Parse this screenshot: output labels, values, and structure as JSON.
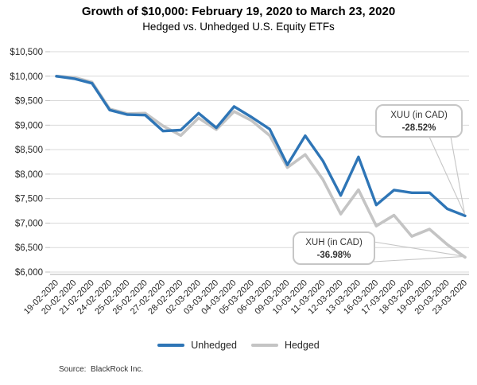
{
  "chart": {
    "title": "Growth of $10,000: February 19, 2020 to March 23, 2020",
    "subtitle": "Hedged vs. Unhedged U.S. Equity ETFs",
    "source": "Source:  BlackRock Inc."
  },
  "legend": {
    "unhedged": "Unhedged",
    "hedged": "Hedged"
  },
  "callouts": [
    {
      "id": "xuu",
      "label": "XUU (in CAD)",
      "value": "-28.52%"
    },
    {
      "id": "xuh",
      "label": "XUH (in CAD)",
      "value": "-36.98%"
    }
  ],
  "colors": {
    "unhedged": "#2E75B6",
    "hedged": "#C4C4C4",
    "grid": "#D9D9D9",
    "axis": "#BFBFBF",
    "tick_text": "#262626",
    "callout_border": "#C6C6C6"
  },
  "chart_data": {
    "type": "line",
    "title": "Growth of $10,000: February 19, 2020 to March 23, 2020",
    "subtitle": "Hedged vs. Unhedged U.S. Equity ETFs",
    "xlabel": "",
    "ylabel": "",
    "ylim": [
      6000,
      10500
    ],
    "grid": "horizontal",
    "legend_position": "bottom",
    "categories": [
      "19-02-2020",
      "20-02-2020",
      "21-02-2020",
      "24-02-2020",
      "25-02-2020",
      "26-02-2020",
      "27-02-2020",
      "28-02-2020",
      "02-03-2020",
      "03-03-2020",
      "04-03-2020",
      "05-03-2020",
      "06-03-2020",
      "09-03-2020",
      "10-03-2020",
      "11-03-2020",
      "12-03-2020",
      "13-03-2020",
      "16-03-2020",
      "17-03-2020",
      "18-03-2020",
      "19-03-2020",
      "20-03-2020",
      "23-03-2020"
    ],
    "series": [
      {
        "name": "Unhedged",
        "values": [
          10000,
          9950,
          9855,
          9310,
          9215,
          9205,
          8880,
          8900,
          9245,
          8945,
          9380,
          9160,
          8920,
          8190,
          8785,
          8270,
          7565,
          8350,
          7370,
          7675,
          7620,
          7620,
          7290,
          7148
        ]
      },
      {
        "name": "Hedged",
        "values": [
          10000,
          9975,
          9880,
          9330,
          9235,
          9245,
          8985,
          8790,
          9145,
          8910,
          9280,
          9090,
          8790,
          8135,
          8400,
          7890,
          7185,
          7680,
          6940,
          7160,
          6730,
          6875,
          6560,
          6302
        ]
      }
    ],
    "yticks": [
      {
        "v": 10500,
        "label": "$10,500"
      },
      {
        "v": 10000,
        "label": "$10,000"
      },
      {
        "v": 9500,
        "label": "$9,500"
      },
      {
        "v": 9000,
        "label": "$9,000"
      },
      {
        "v": 8500,
        "label": "$8,500"
      },
      {
        "v": 8000,
        "label": "$8,000"
      },
      {
        "v": 7500,
        "label": "$7,500"
      },
      {
        "v": 7000,
        "label": "$7,000"
      },
      {
        "v": 6500,
        "label": "$6,500"
      },
      {
        "v": 6000,
        "label": "$6,000"
      }
    ],
    "end_annotations": [
      {
        "series": "Unhedged",
        "text": "XUU (in CAD) -28.52%"
      },
      {
        "series": "Hedged",
        "text": "XUH (in CAD) -36.98%"
      }
    ]
  }
}
